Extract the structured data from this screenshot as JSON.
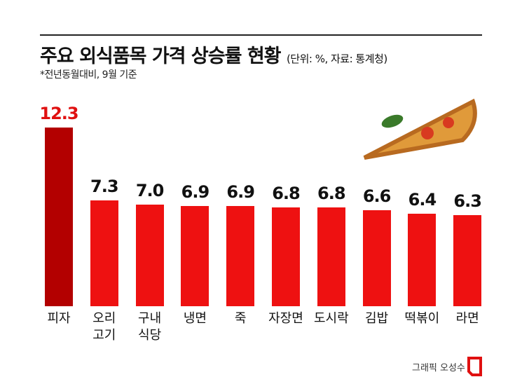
{
  "chart_data": {
    "type": "bar",
    "title": "주요 외식품목 가격 상승률 현황",
    "subtitle": "(단위: %, 자료: 통계청)",
    "note": "*전년동월대비, 9월 기준",
    "credit": "그래픽 오성수",
    "categories": [
      "피자",
      "오리\n고기",
      "구내\n식당",
      "냉면",
      "죽",
      "자장면",
      "도시락",
      "김밥",
      "떡볶이",
      "라면"
    ],
    "values": [
      12.3,
      7.3,
      7.0,
      6.9,
      6.9,
      6.8,
      6.8,
      6.6,
      6.4,
      6.3
    ],
    "value_labels": [
      "12.3",
      "7.3",
      "7.0",
      "6.9",
      "6.9",
      "6.8",
      "6.8",
      "6.6",
      "6.4",
      "6.3"
    ],
    "colors": [
      "#b30000",
      "#ee1111",
      "#ee1111",
      "#ee1111",
      "#ee1111",
      "#ee1111",
      "#ee1111",
      "#ee1111",
      "#ee1111",
      "#ee1111"
    ],
    "label_colors": [
      "#e01010",
      "#111111",
      "#111111",
      "#111111",
      "#111111",
      "#111111",
      "#111111",
      "#111111",
      "#111111",
      "#111111"
    ]
  }
}
